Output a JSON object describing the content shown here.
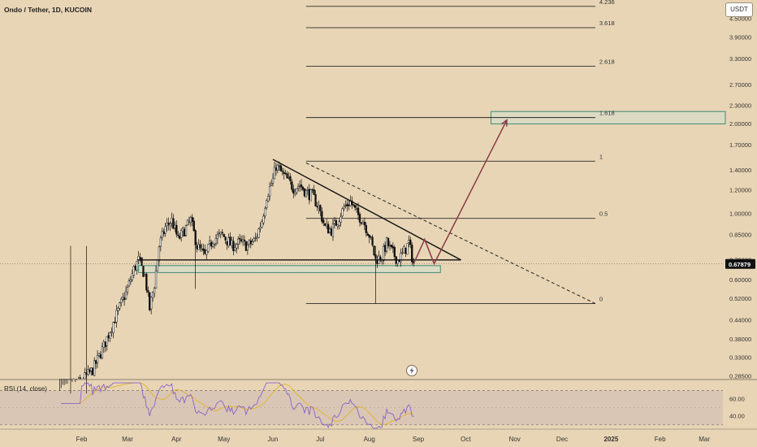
{
  "title": "Ondo / Tether, 1D, KUCOIN",
  "currency_button": "USDT",
  "chart_data": {
    "type": "candlestick",
    "title": "Ondo / Tether, 1D, KUCOIN",
    "price_axis": {
      "scale": "log",
      "range": [
        0.28,
        5.2
      ],
      "ticks": [
        "4.50000",
        "3.90000",
        "3.30000",
        "2.70000",
        "2.30000",
        "2.00000",
        "1.70000",
        "1.40000",
        "1.20000",
        "1.00000",
        "0.85000",
        "0.70000",
        "0.60000",
        "0.52000",
        "0.44000",
        "0.38000",
        "0.33000",
        "0.28500"
      ]
    },
    "time_axis": {
      "labels": [
        "Feb",
        "Mar",
        "Apr",
        "May",
        "Jun",
        "Jul",
        "Aug",
        "Sep",
        "Oct",
        "Nov",
        "Dec",
        "2025",
        "Feb",
        "Mar"
      ]
    },
    "last_price": {
      "label": "0.67879",
      "value": 0.67879
    },
    "fibonacci": [
      {
        "label": "4.236",
        "value": 4.95
      },
      {
        "label": "3.618",
        "value": 4.2
      },
      {
        "label": "2.618",
        "value": 3.12
      },
      {
        "label": "1.618",
        "value": 2.1
      },
      {
        "label": "1",
        "value": 1.5
      },
      {
        "label": "0.5",
        "value": 0.965
      },
      {
        "label": "0",
        "value": 0.5
      }
    ],
    "price_path": [
      [
        "2024-01-18",
        0.25
      ],
      [
        "2024-01-30",
        0.27
      ],
      [
        "2024-02-08",
        0.3
      ],
      [
        "2024-02-15",
        0.36
      ],
      [
        "2024-02-20",
        0.42
      ],
      [
        "2024-02-26",
        0.5
      ],
      [
        "2024-03-01",
        0.56
      ],
      [
        "2024-03-05",
        0.65
      ],
      [
        "2024-03-08",
        0.7
      ],
      [
        "2024-03-12",
        0.62
      ],
      [
        "2024-03-15",
        0.48
      ],
      [
        "2024-03-18",
        0.58
      ],
      [
        "2024-03-21",
        0.78
      ],
      [
        "2024-03-25",
        0.9
      ],
      [
        "2024-03-29",
        0.95
      ],
      [
        "2024-04-02",
        0.82
      ],
      [
        "2024-04-06",
        0.88
      ],
      [
        "2024-04-10",
        0.95
      ],
      [
        "2024-04-14",
        0.78
      ],
      [
        "2024-04-19",
        0.72
      ],
      [
        "2024-04-24",
        0.82
      ],
      [
        "2024-04-30",
        0.85
      ],
      [
        "2024-05-06",
        0.78
      ],
      [
        "2024-05-11",
        0.8
      ],
      [
        "2024-05-16",
        0.78
      ],
      [
        "2024-05-21",
        0.82
      ],
      [
        "2024-05-25",
        0.95
      ],
      [
        "2024-05-28",
        1.15
      ],
      [
        "2024-06-01",
        1.3
      ],
      [
        "2024-06-03",
        1.45
      ],
      [
        "2024-06-06",
        1.38
      ],
      [
        "2024-06-10",
        1.3
      ],
      [
        "2024-06-14",
        1.22
      ],
      [
        "2024-06-18",
        1.25
      ],
      [
        "2024-06-22",
        1.18
      ],
      [
        "2024-06-26",
        1.15
      ],
      [
        "2024-06-30",
        1.05
      ],
      [
        "2024-07-04",
        0.9
      ],
      [
        "2024-07-08",
        0.88
      ],
      [
        "2024-07-12",
        0.95
      ],
      [
        "2024-07-16",
        1.05
      ],
      [
        "2024-07-20",
        1.1
      ],
      [
        "2024-07-24",
        1.0
      ],
      [
        "2024-07-28",
        0.95
      ],
      [
        "2024-08-01",
        0.85
      ],
      [
        "2024-08-05",
        0.7
      ],
      [
        "2024-08-09",
        0.72
      ],
      [
        "2024-08-12",
        0.8
      ],
      [
        "2024-08-15",
        0.75
      ],
      [
        "2024-08-19",
        0.7
      ],
      [
        "2024-08-22",
        0.73
      ],
      [
        "2024-08-26",
        0.8
      ],
      [
        "2024-08-29",
        0.68
      ]
    ],
    "forecast_path": [
      [
        "2024-08-29",
        0.68
      ],
      [
        "2024-09-05",
        0.82
      ],
      [
        "2024-09-11",
        0.68
      ],
      [
        "2024-10-27",
        2.06
      ]
    ],
    "support_zone": {
      "from": "2024-03-08",
      "to": "2024-09-15",
      "low": 0.635,
      "high": 0.67
    },
    "target_zone": {
      "from": "2024-10-17",
      "to": "2025-03-31",
      "low": 2.0,
      "high": 2.2
    },
    "trendline_solid": [
      [
        "2024-06-01",
        1.52
      ],
      [
        "2024-09-28",
        0.7
      ]
    ],
    "trendline_dashed": [
      [
        "2024-06-22",
        1.48
      ],
      [
        "2024-12-22",
        0.5
      ]
    ],
    "horizontal_level": [
      [
        "2024-03-07",
        0.7
      ],
      [
        "2024-09-28",
        0.7
      ]
    ],
    "rsi": {
      "title": "RSI (14, close)",
      "range": [
        25,
        80
      ],
      "ticks": [
        "60.00",
        "40.00"
      ],
      "bands": [
        70,
        30
      ]
    }
  }
}
